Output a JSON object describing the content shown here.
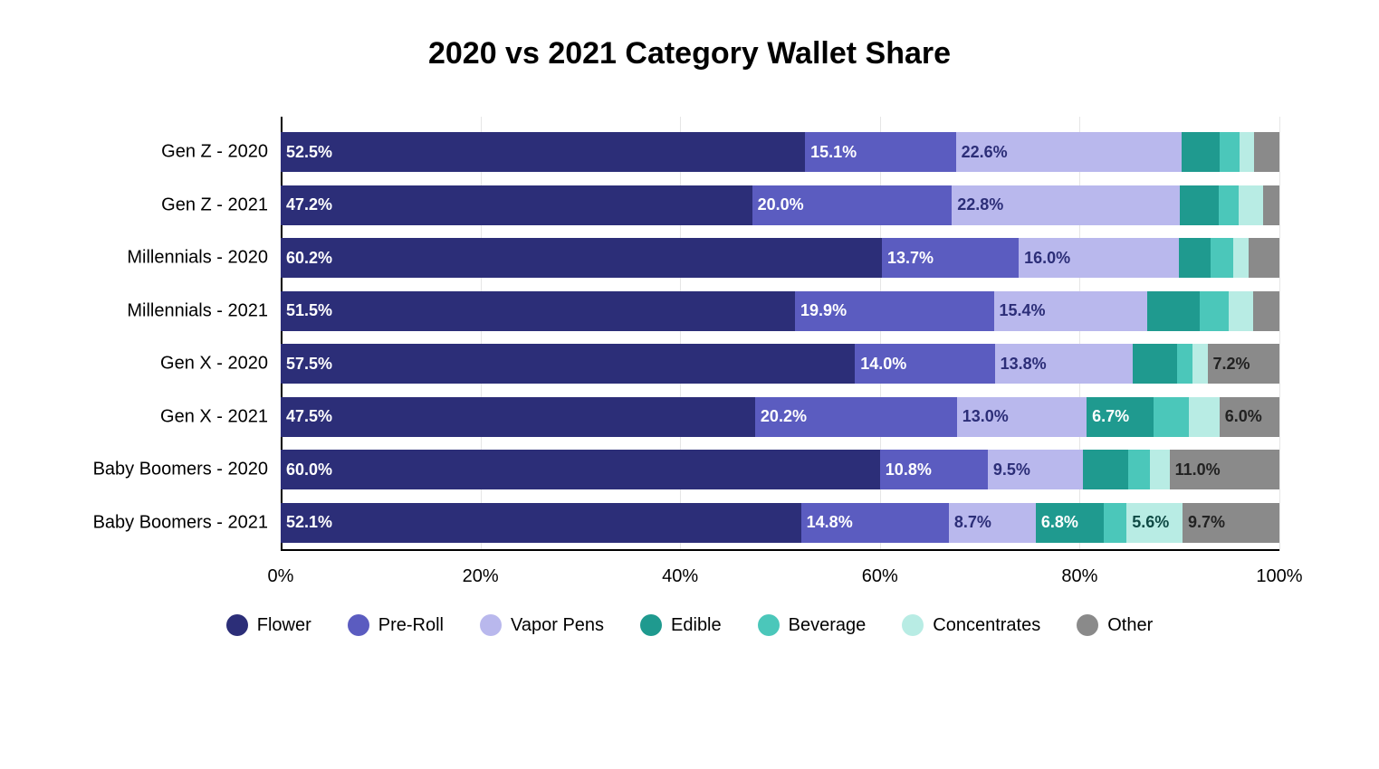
{
  "chart": {
    "type": "stacked-bar-horizontal",
    "title": "2020 vs 2021 Category Wallet Share",
    "title_fontsize": 34,
    "title_fontweight": 700,
    "background_color": "#ffffff",
    "grid_color": "#e6e6e6",
    "axis_color": "#000000",
    "label_fontsize": 20,
    "value_fontsize": 18,
    "xaxis": {
      "min": 0,
      "max": 100,
      "tick_step": 20,
      "suffix": "%",
      "ticks": [
        0,
        20,
        40,
        60,
        80,
        100
      ],
      "tick_labels": [
        "0%",
        "20%",
        "40%",
        "60%",
        "80%",
        "100%"
      ]
    },
    "series": [
      {
        "key": "flower",
        "label": "Flower",
        "color": "#2c2e78",
        "text_color": "#ffffff"
      },
      {
        "key": "preroll",
        "label": "Pre-Roll",
        "color": "#5b5cc0",
        "text_color": "#ffffff"
      },
      {
        "key": "vapor",
        "label": "Vapor Pens",
        "color": "#b9b8ed",
        "text_color": "#2c2e78"
      },
      {
        "key": "edible",
        "label": "Edible",
        "color": "#1f9a8f",
        "text_color": "#ffffff"
      },
      {
        "key": "beverage",
        "label": "Beverage",
        "color": "#4bc7ba",
        "text_color": "#0f4a45"
      },
      {
        "key": "concentrates",
        "label": "Concentrates",
        "color": "#b8ece4",
        "text_color": "#0f4a45"
      },
      {
        "key": "other",
        "label": "Other",
        "color": "#8a8a8a",
        "text_color": "#222222"
      }
    ],
    "rows": [
      {
        "label": "Gen Z - 2020",
        "values": {
          "flower": 52.5,
          "preroll": 15.1,
          "vapor": 22.6,
          "edible": 3.8,
          "beverage": 2.0,
          "concentrates": 1.5,
          "other": 2.5
        },
        "show": {
          "flower": "52.5%",
          "preroll": "15.1%",
          "vapor": "22.6%"
        }
      },
      {
        "label": "Gen Z - 2021",
        "values": {
          "flower": 47.2,
          "preroll": 20.0,
          "vapor": 22.8,
          "edible": 3.9,
          "beverage": 2.0,
          "concentrates": 2.5,
          "other": 1.6
        },
        "show": {
          "flower": "47.2%",
          "preroll": "20.0%",
          "vapor": "22.8%"
        }
      },
      {
        "label": "Millennials - 2020",
        "values": {
          "flower": 60.2,
          "preroll": 13.7,
          "vapor": 16.0,
          "edible": 3.2,
          "beverage": 2.3,
          "concentrates": 1.5,
          "other": 3.1
        },
        "show": {
          "flower": "60.2%",
          "preroll": "13.7%",
          "vapor": "16.0%"
        }
      },
      {
        "label": "Millennials - 2021",
        "values": {
          "flower": 51.5,
          "preroll": 19.9,
          "vapor": 15.4,
          "edible": 5.2,
          "beverage": 2.9,
          "concentrates": 2.5,
          "other": 2.6
        },
        "show": {
          "flower": "51.5%",
          "preroll": "19.9%",
          "vapor": "15.4%"
        }
      },
      {
        "label": "Gen X - 2020",
        "values": {
          "flower": 57.5,
          "preroll": 14.0,
          "vapor": 13.8,
          "edible": 4.5,
          "beverage": 1.5,
          "concentrates": 1.5,
          "other": 7.2
        },
        "show": {
          "flower": "57.5%",
          "preroll": "14.0%",
          "vapor": "13.8%",
          "other": "7.2%"
        }
      },
      {
        "label": "Gen X - 2021",
        "values": {
          "flower": 47.5,
          "preroll": 20.2,
          "vapor": 13.0,
          "edible": 6.7,
          "beverage": 3.5,
          "concentrates": 3.1,
          "other": 6.0
        },
        "show": {
          "flower": "47.5%",
          "preroll": "20.2%",
          "vapor": "13.0%",
          "edible": "6.7%",
          "other": "6.0%"
        }
      },
      {
        "label": "Baby Boomers - 2020",
        "values": {
          "flower": 60.0,
          "preroll": 10.8,
          "vapor": 9.5,
          "edible": 4.6,
          "beverage": 2.1,
          "concentrates": 2.0,
          "other": 11.0
        },
        "show": {
          "flower": "60.0%",
          "preroll": "10.8%",
          "vapor": "9.5%",
          "other": "11.0%"
        }
      },
      {
        "label": "Baby Boomers - 2021",
        "values": {
          "flower": 52.1,
          "preroll": 14.8,
          "vapor": 8.7,
          "edible": 6.8,
          "beverage": 2.3,
          "concentrates": 5.6,
          "other": 9.7
        },
        "show": {
          "flower": "52.1%",
          "preroll": "14.8%",
          "vapor": "8.7%",
          "edible": "6.8%",
          "concentrates": "5.6%",
          "other": "9.7%"
        }
      }
    ]
  }
}
